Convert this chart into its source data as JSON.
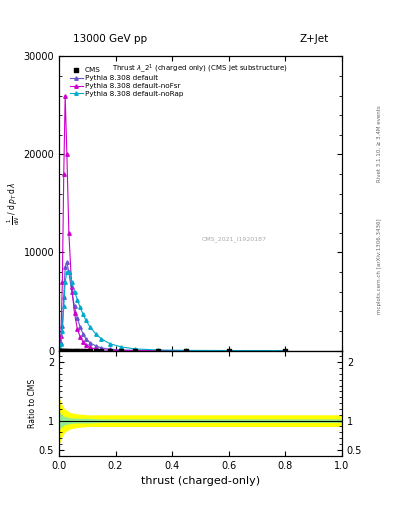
{
  "title_top": "13000 GeV pp",
  "title_right": "Z+Jet",
  "xlabel": "thrust (charged-only)",
  "ylabel_ratio": "Ratio to CMS",
  "right_label_top": "Rivet 3.1.10, ≥ 3.4M events",
  "right_label_bottom": "mcplots.cern.ch [arXiv:1306.3436]",
  "watermark": "CMS_2021_I1920187",
  "legend_entries": [
    "CMS",
    "Pythia 8.308 default",
    "Pythia 8.308 default-noFsr",
    "Pythia 8.308 default-noRap"
  ],
  "color_default": "#6655cc",
  "color_nofsr": "#cc00cc",
  "color_norap": "#00aacc",
  "color_cms": "black",
  "xlim": [
    0,
    1
  ],
  "ylim_main": [
    0,
    30000
  ],
  "ylim_ratio": [
    0.4,
    2.2
  ],
  "x_def": [
    0.003,
    0.007,
    0.012,
    0.017,
    0.022,
    0.028,
    0.035,
    0.045,
    0.055,
    0.065,
    0.075,
    0.085,
    0.095,
    0.11,
    0.13,
    0.15,
    0.18,
    0.22,
    0.27,
    0.35,
    0.45,
    0.6,
    0.8
  ],
  "y_def": [
    200,
    800,
    2500,
    5500,
    8500,
    9000,
    8000,
    6000,
    4500,
    3300,
    2400,
    1700,
    1200,
    800,
    480,
    280,
    140,
    65,
    25,
    8,
    3,
    1,
    0.2
  ],
  "x_nofsr": [
    0.003,
    0.007,
    0.012,
    0.017,
    0.022,
    0.028,
    0.035,
    0.045,
    0.055,
    0.065,
    0.075,
    0.085,
    0.095,
    0.11,
    0.13,
    0.15,
    0.18,
    0.22,
    0.27,
    0.35,
    0.45,
    0.6,
    0.8
  ],
  "y_nofsr": [
    200,
    1500,
    7000,
    18000,
    26000,
    20000,
    12000,
    6500,
    3800,
    2200,
    1400,
    900,
    550,
    320,
    160,
    85,
    35,
    13,
    5,
    2,
    0.8,
    0.3,
    0.1
  ],
  "x_norap": [
    0.003,
    0.007,
    0.012,
    0.017,
    0.022,
    0.028,
    0.035,
    0.045,
    0.055,
    0.065,
    0.075,
    0.085,
    0.095,
    0.11,
    0.13,
    0.15,
    0.18,
    0.22,
    0.27,
    0.35,
    0.45,
    0.6,
    0.8
  ],
  "y_norap": [
    200,
    700,
    2000,
    4500,
    7000,
    8000,
    8000,
    7000,
    6000,
    5200,
    4400,
    3700,
    3100,
    2400,
    1700,
    1200,
    700,
    370,
    170,
    60,
    20,
    5,
    1
  ],
  "x_cms": [
    0.003,
    0.007,
    0.012,
    0.017,
    0.022,
    0.028,
    0.035,
    0.045,
    0.055,
    0.065,
    0.075,
    0.085,
    0.095,
    0.11,
    0.13,
    0.15,
    0.18,
    0.22,
    0.27,
    0.35,
    0.45,
    0.6,
    0.8
  ],
  "y_cms": [
    5,
    5,
    5,
    5,
    5,
    5,
    5,
    5,
    5,
    5,
    5,
    5,
    5,
    5,
    5,
    5,
    5,
    5,
    5,
    5,
    5,
    5,
    5
  ],
  "ratio_x": [
    0.0,
    0.005,
    0.01,
    0.02,
    0.04,
    0.06,
    0.08,
    0.1,
    0.15,
    0.2,
    0.3,
    0.4,
    0.5,
    0.6,
    0.7,
    0.8,
    0.9,
    1.0
  ],
  "ratio_green_lo": [
    0.85,
    0.87,
    0.9,
    0.93,
    0.95,
    0.96,
    0.96,
    0.96,
    0.97,
    0.97,
    0.97,
    0.97,
    0.97,
    0.97,
    0.97,
    0.97,
    0.97,
    0.97
  ],
  "ratio_green_hi": [
    1.15,
    1.13,
    1.1,
    1.07,
    1.05,
    1.04,
    1.04,
    1.04,
    1.03,
    1.03,
    1.03,
    1.03,
    1.03,
    1.03,
    1.03,
    1.03,
    1.03,
    1.03
  ],
  "ratio_yellow_lo": [
    0.6,
    0.65,
    0.72,
    0.8,
    0.86,
    0.88,
    0.89,
    0.9,
    0.9,
    0.9,
    0.9,
    0.9,
    0.9,
    0.9,
    0.9,
    0.9,
    0.9,
    0.9
  ],
  "ratio_yellow_hi": [
    1.4,
    1.35,
    1.28,
    1.2,
    1.14,
    1.12,
    1.11,
    1.1,
    1.1,
    1.1,
    1.1,
    1.1,
    1.1,
    1.1,
    1.1,
    1.1,
    1.1,
    1.1
  ]
}
